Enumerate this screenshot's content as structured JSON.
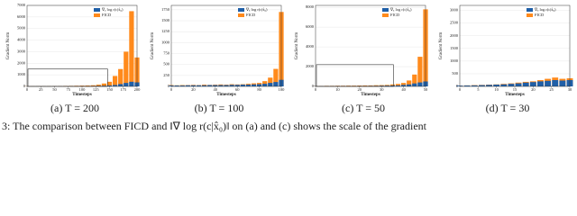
{
  "chart_data": [
    {
      "type": "bar",
      "subtitle": "(a) T = 200",
      "xlabel": "Timesteps",
      "ylabel": "Gradient Norm",
      "x": [
        0,
        10,
        20,
        30,
        40,
        50,
        60,
        70,
        80,
        90,
        100,
        110,
        120,
        130,
        140,
        150,
        160,
        170,
        180,
        190,
        200
      ],
      "series": [
        {
          "name": "∇ₓ log r(c|x̂₀)",
          "color": "#1f5fa8",
          "values": [
            10,
            10,
            15,
            15,
            15,
            20,
            20,
            20,
            25,
            25,
            30,
            30,
            40,
            50,
            60,
            80,
            120,
            200,
            300,
            400,
            350
          ]
        },
        {
          "name": "FICD",
          "color": "#ff8a1c",
          "values": [
            20,
            25,
            30,
            30,
            35,
            40,
            40,
            45,
            50,
            60,
            70,
            80,
            100,
            150,
            250,
            400,
            900,
            1500,
            3000,
            6500,
            2500
          ]
        }
      ],
      "xlim": [
        0,
        200
      ],
      "xticks": [
        0,
        25,
        50,
        75,
        100,
        125,
        150,
        175,
        200
      ],
      "ylim": [
        0,
        7000
      ],
      "yticks": [
        0,
        1000,
        2000,
        3000,
        4000,
        5000,
        6000,
        7000
      ]
    },
    {
      "type": "bar",
      "subtitle": "(b) T = 100",
      "xlabel": "Timesteps",
      "ylabel": "Gradient Norm",
      "x": [
        0,
        5,
        10,
        15,
        20,
        25,
        30,
        35,
        40,
        45,
        50,
        55,
        60,
        65,
        70,
        75,
        80,
        85,
        90,
        95,
        100
      ],
      "series": [
        {
          "name": "∇ₓ log r(c|x̂₀)",
          "color": "#1f5fa8",
          "values": [
            20,
            20,
            20,
            25,
            25,
            25,
            25,
            30,
            30,
            30,
            30,
            35,
            35,
            40,
            40,
            45,
            50,
            60,
            80,
            100,
            150
          ]
        },
        {
          "name": "FICD",
          "color": "#ff8a1c",
          "values": [
            30,
            25,
            30,
            30,
            35,
            30,
            40,
            35,
            40,
            45,
            40,
            50,
            45,
            50,
            60,
            70,
            80,
            120,
            200,
            400,
            1700
          ]
        }
      ],
      "xlim": [
        0,
        100
      ],
      "xticks": [
        0,
        20,
        40,
        60,
        80,
        100
      ],
      "ylim": [
        0,
        1850
      ],
      "yticks": [
        0,
        250,
        500,
        750,
        1000,
        1250,
        1500,
        1750
      ]
    },
    {
      "type": "bar",
      "subtitle": "(c) T = 50",
      "xlabel": "Timesteps",
      "ylabel": "Gradient Norm",
      "x": [
        0,
        2.5,
        5,
        7.5,
        10,
        12.5,
        15,
        17.5,
        20,
        22.5,
        25,
        27.5,
        30,
        32.5,
        35,
        37.5,
        40,
        42.5,
        45,
        47.5,
        50
      ],
      "series": [
        {
          "name": "∇ₓ log r(c|x̂₀)",
          "color": "#1f5fa8",
          "values": [
            30,
            30,
            35,
            35,
            40,
            40,
            45,
            45,
            50,
            50,
            55,
            60,
            70,
            80,
            90,
            100,
            150,
            200,
            300,
            400,
            500
          ]
        },
        {
          "name": "FICD",
          "color": "#ff8a1c",
          "values": [
            50,
            50,
            60,
            60,
            70,
            70,
            80,
            80,
            90,
            100,
            100,
            120,
            130,
            150,
            200,
            250,
            350,
            600,
            1200,
            3000,
            7800
          ]
        }
      ],
      "xlim": [
        0,
        50
      ],
      "xticks": [
        0,
        10,
        20,
        30,
        40,
        50
      ],
      "ylim": [
        0,
        8200
      ],
      "yticks": [
        0,
        2000,
        4000,
        6000,
        8000
      ]
    },
    {
      "type": "bar",
      "subtitle": "(d) T = 30",
      "xlabel": "Timesteps",
      "ylabel": "Gradient Norm",
      "x": [
        0,
        2,
        4,
        6,
        8,
        10,
        12,
        14,
        16,
        18,
        20,
        22,
        24,
        26,
        28,
        30
      ],
      "series": [
        {
          "name": "∇ₓ log r(c|x̂₀)",
          "color": "#1f5fa8",
          "values": [
            30,
            35,
            40,
            50,
            60,
            70,
            80,
            100,
            120,
            150,
            170,
            200,
            220,
            250,
            230,
            250
          ]
        },
        {
          "name": "FICD",
          "color": "#ff8a1c",
          "values": [
            30,
            40,
            50,
            60,
            70,
            80,
            100,
            120,
            150,
            180,
            200,
            250,
            300,
            350,
            300,
            320
          ]
        }
      ],
      "xlim": [
        0,
        30
      ],
      "xticks": [
        0,
        5,
        10,
        15,
        20,
        25,
        30
      ],
      "ylim": [
        0,
        3200
      ],
      "yticks": [
        0,
        500,
        1000,
        1500,
        2000,
        2500,
        3000
      ]
    }
  ],
  "caption": "3: The comparison between FICD and ‖∇ log r(c|x̂₀)‖ on (a) and (c) shows the scale of the gradient"
}
